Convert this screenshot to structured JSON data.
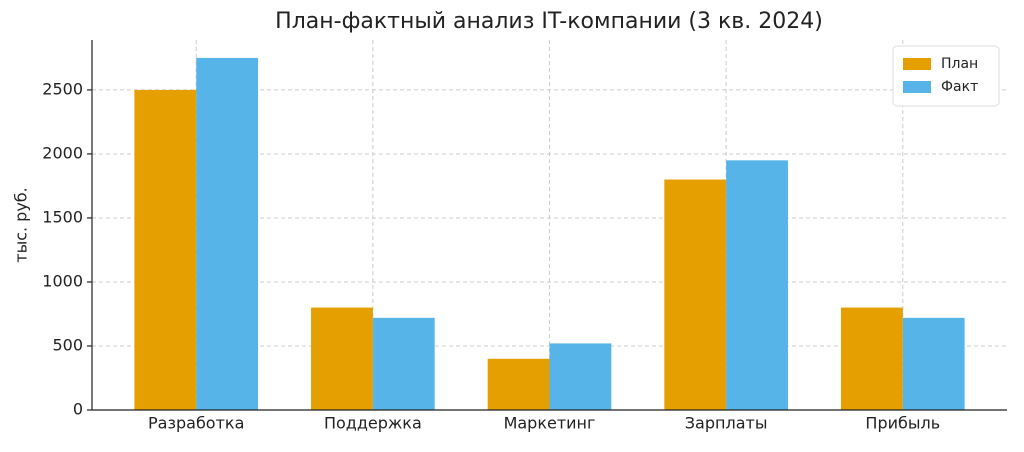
{
  "chart_data": {
    "type": "bar",
    "title": "План-фактный анализ IT-компании (3 кв. 2024)",
    "y_label": "тыс. руб.",
    "categories": [
      "Разработка",
      "Поддержка",
      "Маркетинг",
      "Зарплаты",
      "Прибыль"
    ],
    "series": [
      {
        "name": "План",
        "color": "#E69F00",
        "values": [
          2500,
          800,
          400,
          1800,
          800
        ]
      },
      {
        "name": "Факт",
        "color": "#56B4E9",
        "values": [
          2750,
          720,
          520,
          1950,
          720
        ]
      }
    ],
    "ylim": [
      0,
      2890
    ],
    "yticks": [
      0,
      500,
      1000,
      1500,
      2000,
      2500
    ],
    "grid": true,
    "legend": "upper right"
  }
}
